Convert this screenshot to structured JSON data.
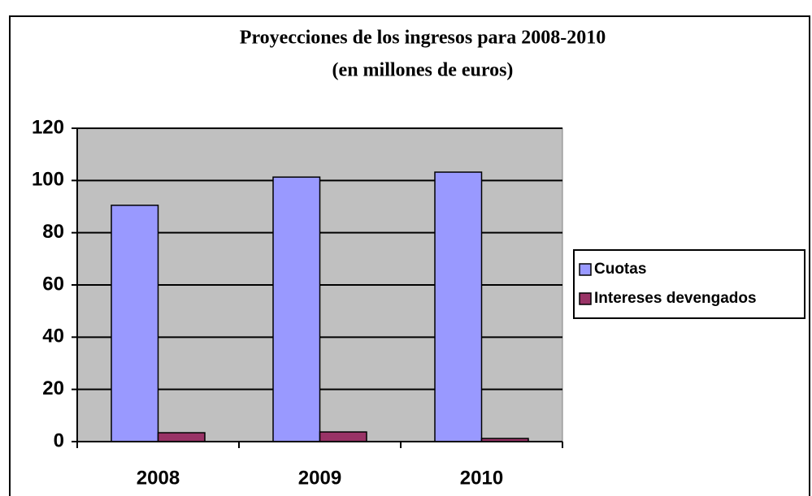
{
  "chart_data": {
    "type": "bar",
    "title": "Proyecciones de los ingresos para 2008-2010",
    "subtitle": "(en millones de euros)",
    "categories": [
      "2008",
      "2009",
      "2010"
    ],
    "series": [
      {
        "name": "Cuotas",
        "color": "#9999ff",
        "values": [
          90.5,
          101.3,
          103.2
        ]
      },
      {
        "name": "Intereses devengados",
        "color": "#993366",
        "values": [
          3.4,
          3.7,
          1.2
        ]
      }
    ],
    "ylim": [
      0,
      120
    ],
    "yticks": [
      0,
      20,
      40,
      60,
      80,
      100,
      120
    ],
    "grid": true,
    "legend": "right"
  }
}
